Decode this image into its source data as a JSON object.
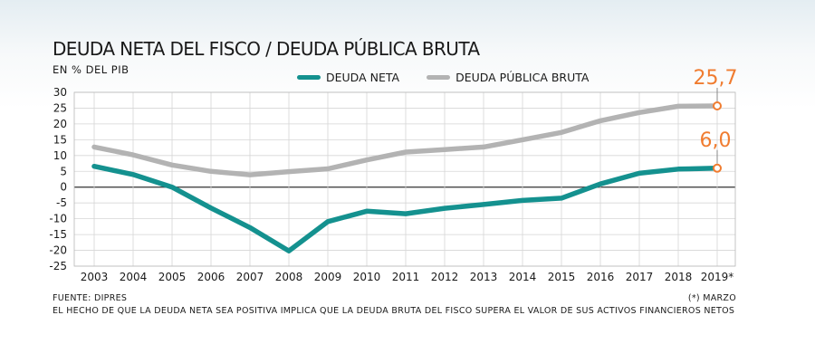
{
  "header": {
    "title": "DEUDA NETA DEL FISCO / DEUDA PÚBLICA BRUTA",
    "subtitle": "EN % DEL PIB"
  },
  "footer": {
    "source": "FUENTE: DIPRES",
    "note": "(*) MARZO",
    "explanation": "EL HECHO DE QUE LA DEUDA NETA SEA POSITIVA IMPLICA QUE LA DEUDA BRUTA DEL FISCO SUPERA EL VALOR DE SUS ACTIVOS FINANCIEROS NETOS"
  },
  "chart_data": {
    "type": "line",
    "x": [
      "2003",
      "2004",
      "2005",
      "2006",
      "2007",
      "2008",
      "2009",
      "2010",
      "2011",
      "2012",
      "2013",
      "2014",
      "2015",
      "2016",
      "2017",
      "2018",
      "2019*"
    ],
    "ylim": [
      -25,
      30
    ],
    "yticks": [
      30,
      25,
      20,
      15,
      10,
      5,
      0,
      -5,
      -10,
      -15,
      -20,
      -25
    ],
    "grid": true,
    "legend_position": "top-center",
    "series": [
      {
        "name": "DEUDA NETA",
        "color": "#14918f",
        "values": [
          6.6,
          4.0,
          0.0,
          -6.6,
          -12.8,
          -20.2,
          -10.9,
          -7.6,
          -8.4,
          -6.7,
          -5.5,
          -4.2,
          -3.5,
          1.0,
          4.4,
          5.7,
          6.0
        ]
      },
      {
        "name": "DEUDA PÚBLICA BRUTA",
        "color": "#b3b3b3",
        "values": [
          12.7,
          10.2,
          7.0,
          5.0,
          3.9,
          4.9,
          5.8,
          8.6,
          11.1,
          11.9,
          12.7,
          15.0,
          17.3,
          21.0,
          23.6,
          25.6,
          25.7
        ]
      }
    ],
    "annotations": [
      {
        "series": 1,
        "index": 16,
        "label": "25,7",
        "color": "#f07c30"
      },
      {
        "series": 0,
        "index": 16,
        "label": "6,0",
        "color": "#f07c30"
      }
    ]
  }
}
